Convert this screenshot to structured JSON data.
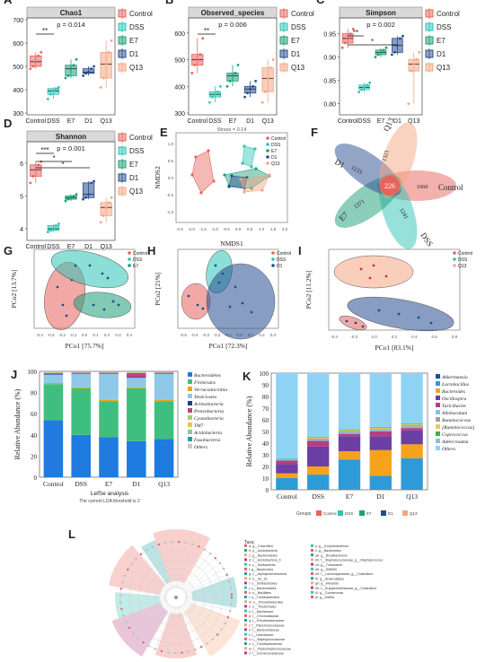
{
  "colors": {
    "Control": "#e8635c",
    "DSS": "#2ec4b6",
    "E7": "#1b9e77",
    "D1": "#274c8f",
    "Q13": "#f4a582"
  },
  "groups": [
    "Control",
    "DSS",
    "E7",
    "D1",
    "Q13"
  ],
  "panels": {
    "A": {
      "label": "A",
      "title": "Chao1",
      "pvalue": "p = 0.014",
      "sig": "**",
      "yticks": [
        "300",
        "400",
        "500",
        "600",
        "700"
      ]
    },
    "B": {
      "label": "B",
      "title": "Observed_species",
      "pvalue": "p = 0.006",
      "sig": "**",
      "yticks": [
        "300",
        "400",
        "500",
        "600"
      ]
    },
    "C": {
      "label": "C",
      "title": "Simpson",
      "pvalue": "p = 0.002",
      "sig1": "**",
      "sig2": "*",
      "yticks": [
        "0.80",
        "0.85",
        "0.90",
        "0.95"
      ]
    },
    "D": {
      "label": "D",
      "title": "Shannon",
      "pvalue": "p = 0.001",
      "sig1": "***",
      "sig2": "*",
      "sig3": "*",
      "yticks": [
        "4",
        "5",
        "6"
      ]
    },
    "E": {
      "label": "E",
      "stress": "Stress = 0.14",
      "xlabel": "NMDS1",
      "ylabel": "NMDS2"
    },
    "F": {
      "label": "F",
      "venn": {
        "Control": "1660",
        "DSS": "1241",
        "E7": "1371",
        "D1": "1233",
        "Q13": "1321",
        "center": "226"
      }
    },
    "G": {
      "label": "G",
      "xlabel": "PCo1 [75.7%]",
      "ylabel": "PCo2 [13.7%]",
      "legend": [
        "Control",
        "DSS",
        "E7"
      ]
    },
    "H": {
      "label": "H",
      "xlabel": "PCo1 [72.3%]",
      "ylabel": "PCo2 [21%]",
      "legend": [
        "Control",
        "DSS",
        "D1"
      ]
    },
    "I": {
      "label": "I",
      "xlabel": "PCo1 [83.1%]",
      "ylabel": "PCo2 [11.2%]",
      "legend": [
        "Control",
        "DSS",
        "Q13"
      ]
    },
    "J": {
      "label": "J",
      "ylabel": "Relative Abundance (%)",
      "yticks": [
        "0",
        "20",
        "40",
        "60",
        "80",
        "100"
      ]
    },
    "K": {
      "label": "K",
      "ylabel": "Relative Abundance (%)",
      "yticks": [
        "0",
        "10",
        "20",
        "30",
        "40",
        "50",
        "60",
        "70",
        "80",
        "90",
        "100"
      ],
      "groups_label": "Groups"
    },
    "L": {
      "label": "L",
      "title": "LefSe analysis",
      "subtitle": "The current LDA threshold is 2",
      "taxa_header": "Taxa"
    }
  },
  "chart_data": [
    {
      "type": "box",
      "panel": "A",
      "categories": [
        "Control",
        "DSS",
        "E7",
        "D1",
        "Q13"
      ],
      "ylim": [
        300,
        700
      ],
      "median": [
        520,
        395,
        490,
        475,
        510
      ],
      "q1": [
        500,
        380,
        460,
        470,
        450
      ],
      "q3": [
        545,
        405,
        505,
        490,
        560
      ],
      "min": [
        490,
        360,
        450,
        460,
        410
      ],
      "max": [
        560,
        410,
        530,
        500,
        610
      ]
    },
    {
      "type": "box",
      "panel": "B",
      "categories": [
        "Control",
        "DSS",
        "E7",
        "D1",
        "Q13"
      ],
      "ylim": [
        300,
        650
      ],
      "median": [
        500,
        370,
        440,
        390,
        430
      ],
      "q1": [
        480,
        360,
        420,
        375,
        380
      ],
      "q3": [
        520,
        380,
        450,
        400,
        470
      ],
      "min": [
        450,
        340,
        400,
        360,
        340
      ],
      "max": [
        580,
        400,
        480,
        420,
        500
      ]
    },
    {
      "type": "box",
      "panel": "C",
      "categories": [
        "Control",
        "DSS",
        "E7",
        "D1",
        "Q13"
      ],
      "ylim": [
        0.78,
        0.98
      ],
      "median": [
        0.94,
        0.835,
        0.91,
        0.925,
        0.885
      ],
      "q1": [
        0.93,
        0.83,
        0.905,
        0.91,
        0.87
      ],
      "q3": [
        0.95,
        0.84,
        0.915,
        0.94,
        0.895
      ],
      "min": [
        0.92,
        0.825,
        0.9,
        0.905,
        0.8
      ],
      "max": [
        0.96,
        0.845,
        0.92,
        0.945,
        0.91
      ]
    },
    {
      "type": "box",
      "panel": "D",
      "categories": [
        "Control",
        "DSS",
        "E7",
        "D1",
        "Q13"
      ],
      "ylim": [
        3.7,
        6.6
      ],
      "median": [
        5.8,
        4.0,
        4.95,
        5.05,
        4.65
      ],
      "q1": [
        5.6,
        3.95,
        4.9,
        4.95,
        4.4
      ],
      "q3": [
        5.95,
        4.1,
        5.0,
        5.4,
        4.8
      ],
      "min": [
        5.4,
        3.9,
        4.85,
        4.9,
        4.2
      ],
      "max": [
        6.05,
        4.15,
        5.05,
        5.45,
        4.95
      ]
    },
    {
      "type": "bar",
      "panel": "J",
      "stacked": true,
      "categories": [
        "Control",
        "DSS",
        "E7",
        "D1",
        "Q13"
      ],
      "series": [
        {
          "name": "Bacteroidetes",
          "values": [
            54,
            40,
            38,
            34,
            36
          ]
        },
        {
          "name": "Firmicutes",
          "values": [
            34,
            44,
            34,
            50,
            36
          ]
        },
        {
          "name": "Verrucomicrobia",
          "values": [
            1,
            1,
            1,
            1,
            1
          ]
        },
        {
          "name": "Tenericutes",
          "values": [
            8,
            13,
            25,
            9,
            25
          ]
        },
        {
          "name": "Actinobacteria",
          "values": [
            0.5,
            0.5,
            0.5,
            0.5,
            0.5
          ]
        },
        {
          "name": "Proteobacteria",
          "values": [
            1,
            0.5,
            0.5,
            4,
            0.5
          ]
        },
        {
          "name": "Cyanobacteria",
          "values": [
            0.5,
            0.5,
            0.5,
            0.5,
            0.5
          ]
        },
        {
          "name": "TM7",
          "values": [
            0.3,
            0.2,
            0.2,
            0.3,
            0.2
          ]
        },
        {
          "name": "Acidobacteria",
          "values": [
            0.2,
            0.2,
            0.2,
            0.2,
            0.2
          ]
        },
        {
          "name": "Fusobacteria",
          "values": [
            0.2,
            0.1,
            0.1,
            0.2,
            0.1
          ]
        },
        {
          "name": "Others",
          "values": [
            0.3,
            0.1,
            0.1,
            0.3,
            0.1
          ]
        }
      ]
    },
    {
      "type": "bar",
      "panel": "K",
      "stacked": true,
      "categories": [
        "Control",
        "DSS",
        "E7",
        "D1",
        "Q13"
      ],
      "series": [
        {
          "name": "Akkermansia",
          "values": [
            0,
            0,
            0,
            0,
            0
          ]
        },
        {
          "name": "Lactobacillus",
          "values": [
            10,
            13,
            26,
            12,
            27
          ]
        },
        {
          "name": "Bacteroides",
          "values": [
            4,
            7,
            7,
            22,
            12
          ]
        },
        {
          "name": "Oscillospira",
          "values": [
            8,
            17,
            13,
            12,
            12
          ]
        },
        {
          "name": "Turicibacter",
          "values": [
            3,
            5,
            2,
            4,
            2
          ]
        },
        {
          "name": "Allobaculum",
          "values": [
            1,
            1,
            1,
            1,
            1
          ]
        },
        {
          "name": "Ruminococcus",
          "values": [
            0,
            1,
            1,
            1,
            1
          ]
        },
        {
          "name": "[Ruminococcus]",
          "values": [
            0,
            1,
            1,
            1,
            1
          ]
        },
        {
          "name": "Coprococcus",
          "values": [
            0.5,
            0.5,
            0.5,
            0.5,
            0.5
          ]
        },
        {
          "name": "Adlercreutzia",
          "values": [
            0.5,
            0.5,
            0.5,
            0.5,
            0.5
          ]
        },
        {
          "name": "Others",
          "values": [
            73,
            54,
            48,
            46,
            43
          ]
        }
      ]
    }
  ],
  "lefse_taxa": [
    "a: g__Chloroflexi",
    "b: p__Acidobacteria",
    "c: g__Bacteroidetes",
    "d: c__Acidobacteria_6",
    "e: c__Solibacteres",
    "f: g__Bacteroidia",
    "g: c__Alphaproteobacteria",
    "h: o__iii1_15",
    "i: o__Solibacterales",
    "j: o__Bacteroidales",
    "k: o__Bacillales",
    "l: o__Turicibacterales",
    "m: o__Rhodobacterales",
    "n: o__Thiotrichales",
    "o: f__Bacillaceae",
    "p: f__Chromatiaceae",
    "q: f__Rhodobacteraceae",
    "r: f__Planctomycetaceae",
    "s: f__Bacteroidaceae",
    "t: f__Listeriaceae",
    "u: f__Staphylococcaceae",
    "v: f__Turicibacteraceae",
    "w: f__Peptostreptococcaceae",
    "x: f__Comamonadaceae",
    "y: g__Corynebacterium",
    "z: g__Bacteroides",
    "a0: g__Brevibacterium",
    "b0: f__Staphylococcaceae_g__Staphylococcus",
    "c0: g__Turicibacter",
    "d0: g__SMB53",
    "e0: f__Lachnospiraceae_g__Clostridium",
    "f0: g__Anaerostipes",
    "g0: g__Moryella",
    "h0: f__Erysipelotrichaceae_g__Clostridium",
    "i0: g__Comamonas",
    "j0: g__Delftia"
  ]
}
